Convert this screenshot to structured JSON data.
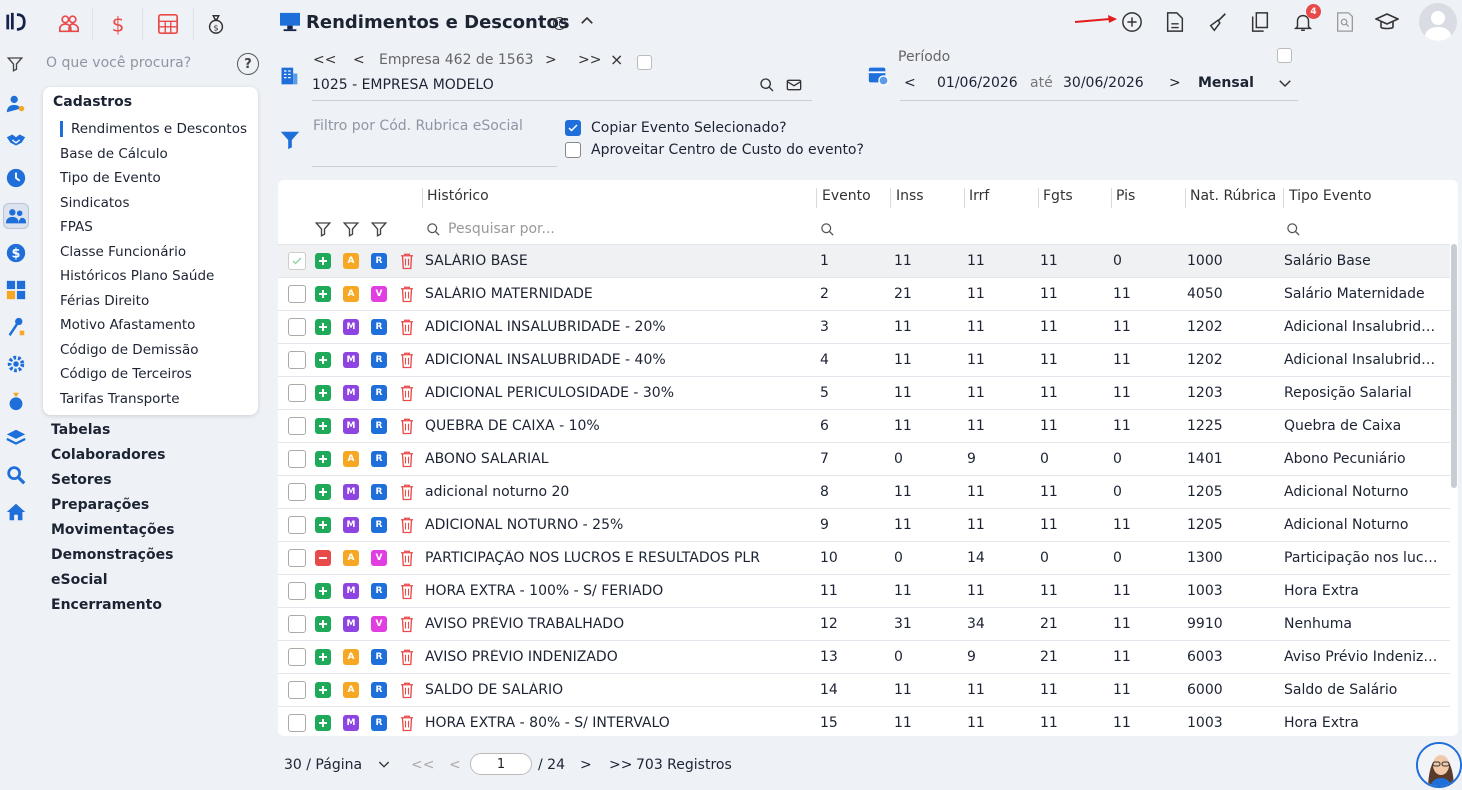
{
  "header": {
    "title": "Rendimentos e Descontos",
    "info": "i",
    "badge_count": "4"
  },
  "search": {
    "placeholder": "O que você procura?",
    "help": "?"
  },
  "menu": {
    "group": "Cadastros",
    "items": [
      "Rendimentos e Descontos",
      "Base de Cálculo",
      "Tipo de Evento",
      "Sindicatos",
      "FPAS",
      "Classe Funcionário",
      "Históricos Plano Saúde",
      "Férias Direito",
      "Motivo Afastamento",
      "Código de Demissão",
      "Código de Terceiros",
      "Tarifas Transporte"
    ],
    "sections": [
      "Tabelas",
      "Colaboradores",
      "Setores",
      "Preparações",
      "Movimentações",
      "Demonstrações",
      "eSocial",
      "Encerramento"
    ]
  },
  "company": {
    "first": "<<",
    "prev": "<",
    "next": ">",
    "last": ">>",
    "close": "×",
    "position": "Empresa 462 de 1563",
    "name": "1025 - EMPRESA MODELO"
  },
  "period": {
    "label": "Período",
    "prev": "<",
    "start": "01/06/2026",
    "until": "até",
    "end": "30/06/2026",
    "next": ">",
    "mode": "Mensal"
  },
  "filter": {
    "placeholder": "Filtro por Cód. Rubrica eSocial",
    "copy_event": "Copiar Evento Selecionado?",
    "use_cost_center": "Aproveitar Centro de Custo do evento?"
  },
  "table": {
    "columns": [
      "Histórico",
      "Evento",
      "Inss",
      "Irrf",
      "Fgts",
      "Pis",
      "Nat. Rúbrica",
      "Tipo Evento"
    ],
    "search_placeholder": "Pesquisar por...",
    "rows": [
      {
        "op": "+",
        "t1": "A",
        "t2": "R",
        "hist": "SALÁRIO BASE",
        "evento": "1",
        "inss": "11",
        "irrf": "11",
        "fgts": "11",
        "pis": "0",
        "nat": "1000",
        "tipo": "Salário Base"
      },
      {
        "op": "+",
        "t1": "A",
        "t2": "V",
        "hist": "SALÁRIO MATERNIDADE",
        "evento": "2",
        "inss": "21",
        "irrf": "11",
        "fgts": "11",
        "pis": "11",
        "nat": "4050",
        "tipo": "Salário Maternidade"
      },
      {
        "op": "+",
        "t1": "M",
        "t2": "R",
        "hist": "ADICIONAL INSALUBRIDADE - 20%",
        "evento": "3",
        "inss": "11",
        "irrf": "11",
        "fgts": "11",
        "pis": "11",
        "nat": "1202",
        "tipo": "Adicional Insalubridade"
      },
      {
        "op": "+",
        "t1": "M",
        "t2": "R",
        "hist": "ADICIONAL INSALUBRIDADE - 40%",
        "evento": "4",
        "inss": "11",
        "irrf": "11",
        "fgts": "11",
        "pis": "11",
        "nat": "1202",
        "tipo": "Adicional Insalubridade"
      },
      {
        "op": "+",
        "t1": "M",
        "t2": "R",
        "hist": "ADICIONAL PERICULOSIDADE - 30%",
        "evento": "5",
        "inss": "11",
        "irrf": "11",
        "fgts": "11",
        "pis": "11",
        "nat": "1203",
        "tipo": "Reposição Salarial"
      },
      {
        "op": "+",
        "t1": "M",
        "t2": "R",
        "hist": "QUEBRA DE CAIXA - 10%",
        "evento": "6",
        "inss": "11",
        "irrf": "11",
        "fgts": "11",
        "pis": "11",
        "nat": "1225",
        "tipo": "Quebra de Caixa"
      },
      {
        "op": "+",
        "t1": "A",
        "t2": "R",
        "hist": "ABONO SALARIAL",
        "evento": "7",
        "inss": "0",
        "irrf": "9",
        "fgts": "0",
        "pis": "0",
        "nat": "1401",
        "tipo": "Abono Pecuniário"
      },
      {
        "op": "+",
        "t1": "M",
        "t2": "R",
        "hist": "adicional noturno 20",
        "evento": "8",
        "inss": "11",
        "irrf": "11",
        "fgts": "11",
        "pis": "0",
        "nat": "1205",
        "tipo": "Adicional Noturno"
      },
      {
        "op": "+",
        "t1": "M",
        "t2": "R",
        "hist": "ADICIONAL NOTURNO - 25%",
        "evento": "9",
        "inss": "11",
        "irrf": "11",
        "fgts": "11",
        "pis": "11",
        "nat": "1205",
        "tipo": "Adicional Noturno"
      },
      {
        "op": "-",
        "t1": "A",
        "t2": "V",
        "hist": "PARTICIPAÇÃO NOS LUCROS E RESULTADOS PLR",
        "evento": "10",
        "inss": "0",
        "irrf": "14",
        "fgts": "0",
        "pis": "0",
        "nat": "1300",
        "tipo": "Participação nos lucros"
      },
      {
        "op": "+",
        "t1": "M",
        "t2": "R",
        "hist": "HORA EXTRA - 100% - S/ FERIADO",
        "evento": "11",
        "inss": "11",
        "irrf": "11",
        "fgts": "11",
        "pis": "11",
        "nat": "1003",
        "tipo": "Hora Extra"
      },
      {
        "op": "+",
        "t1": "M",
        "t2": "V",
        "hist": "AVISO PRÉVIO TRABALHADO",
        "evento": "12",
        "inss": "31",
        "irrf": "34",
        "fgts": "21",
        "pis": "11",
        "nat": "9910",
        "tipo": "Nenhuma"
      },
      {
        "op": "+",
        "t1": "A",
        "t2": "R",
        "hist": "AVISO PRÉVIO INDENIZADO",
        "evento": "13",
        "inss": "0",
        "irrf": "9",
        "fgts": "21",
        "pis": "11",
        "nat": "6003",
        "tipo": "Aviso Prévio Indenizado"
      },
      {
        "op": "+",
        "t1": "A",
        "t2": "R",
        "hist": "SALDO DE SALÁRIO",
        "evento": "14",
        "inss": "11",
        "irrf": "11",
        "fgts": "11",
        "pis": "11",
        "nat": "6000",
        "tipo": "Saldo de Salário"
      },
      {
        "op": "+",
        "t1": "M",
        "t2": "R",
        "hist": "HORA EXTRA - 80% - S/ INTERVALO",
        "evento": "15",
        "inss": "11",
        "irrf": "11",
        "fgts": "11",
        "pis": "11",
        "nat": "1003",
        "tipo": "Hora Extra"
      }
    ]
  },
  "pagination": {
    "per_page": "30 / Página",
    "first": "<<",
    "prev": "<",
    "next": ">",
    "last": ">>",
    "current": "1",
    "total": "/ 24",
    "records": "703 Registros"
  },
  "colors": {
    "accent": "#1e6fd9",
    "tag_a": "#f6a723",
    "tag_m": "#8e44e0",
    "tag_v": "#e03ee0",
    "tag_r": "#1e6fd9",
    "op_plus": "#1faa59",
    "op_minus": "#e84a4a",
    "trash": "#e84a4a"
  }
}
